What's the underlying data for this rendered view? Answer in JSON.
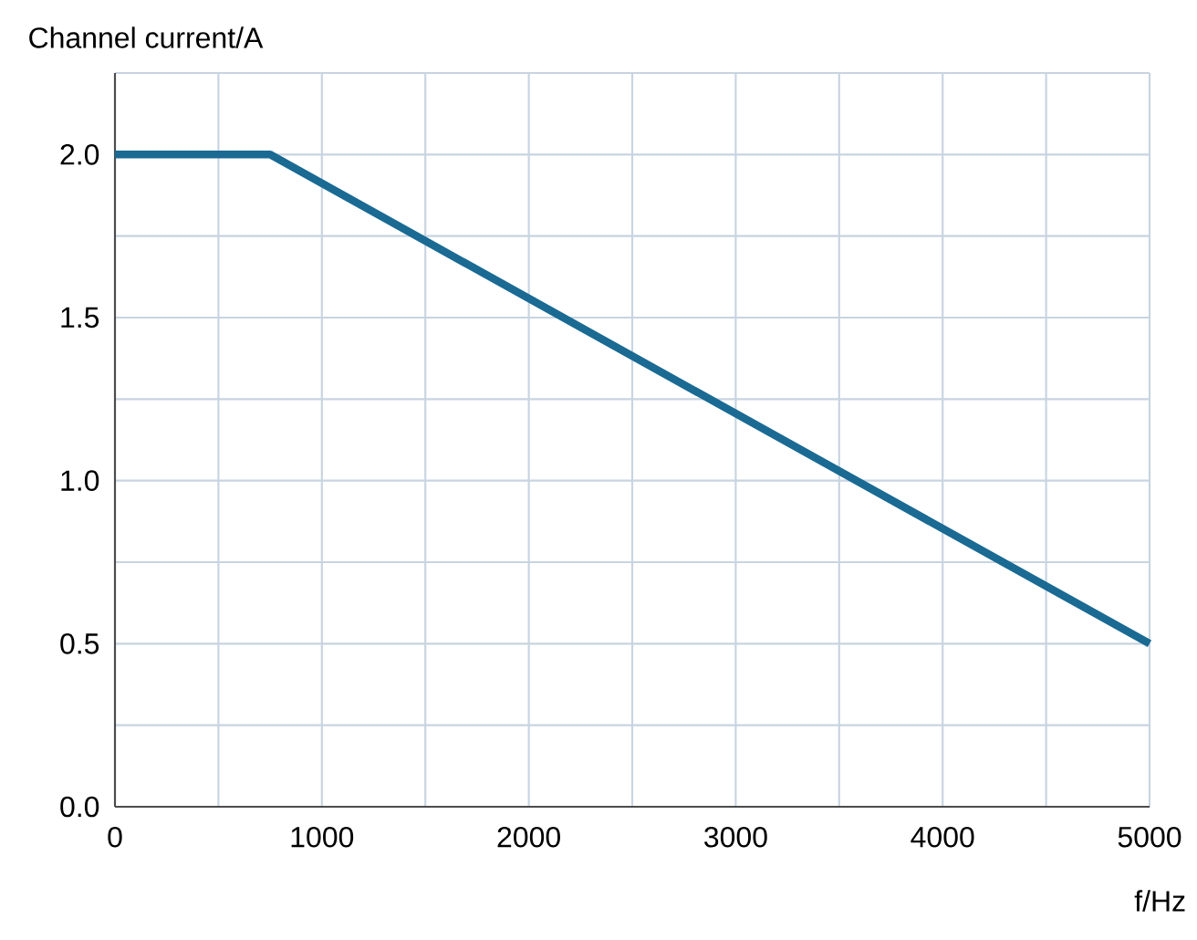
{
  "chart_data": {
    "type": "line",
    "xlabel": "f/Hz",
    "ylabel": "Channel current/A",
    "x": [
      0,
      750,
      5000
    ],
    "series": [
      {
        "color": "#1a6a93",
        "values": [
          2.0,
          2.0,
          0.5
        ]
      }
    ],
    "xlim": [
      0,
      5000
    ],
    "ylim": [
      0,
      2.25
    ],
    "xticks": [
      0,
      {
        "value": 500,
        "label": null
      },
      1000,
      {
        "value": 1500,
        "label": null
      },
      2000,
      {
        "value": 2500,
        "label": null
      },
      3000,
      {
        "value": 3500,
        "label": null
      },
      4000,
      {
        "value": 4500,
        "label": null
      },
      5000
    ],
    "yticks": [
      {
        "value": 0,
        "label": "0.0"
      },
      {
        "value": 0.25,
        "label": null
      },
      0.5,
      {
        "value": 0.75,
        "label": null
      },
      {
        "value": 1,
        "label": "1.0"
      },
      {
        "value": 1.25,
        "label": null
      },
      1.5,
      {
        "value": 1.75,
        "label": null
      },
      {
        "value": 2,
        "label": "2.0"
      },
      {
        "value": 2.25,
        "label": null
      }
    ],
    "grid": true,
    "marker": "none",
    "line_style": "solid"
  }
}
